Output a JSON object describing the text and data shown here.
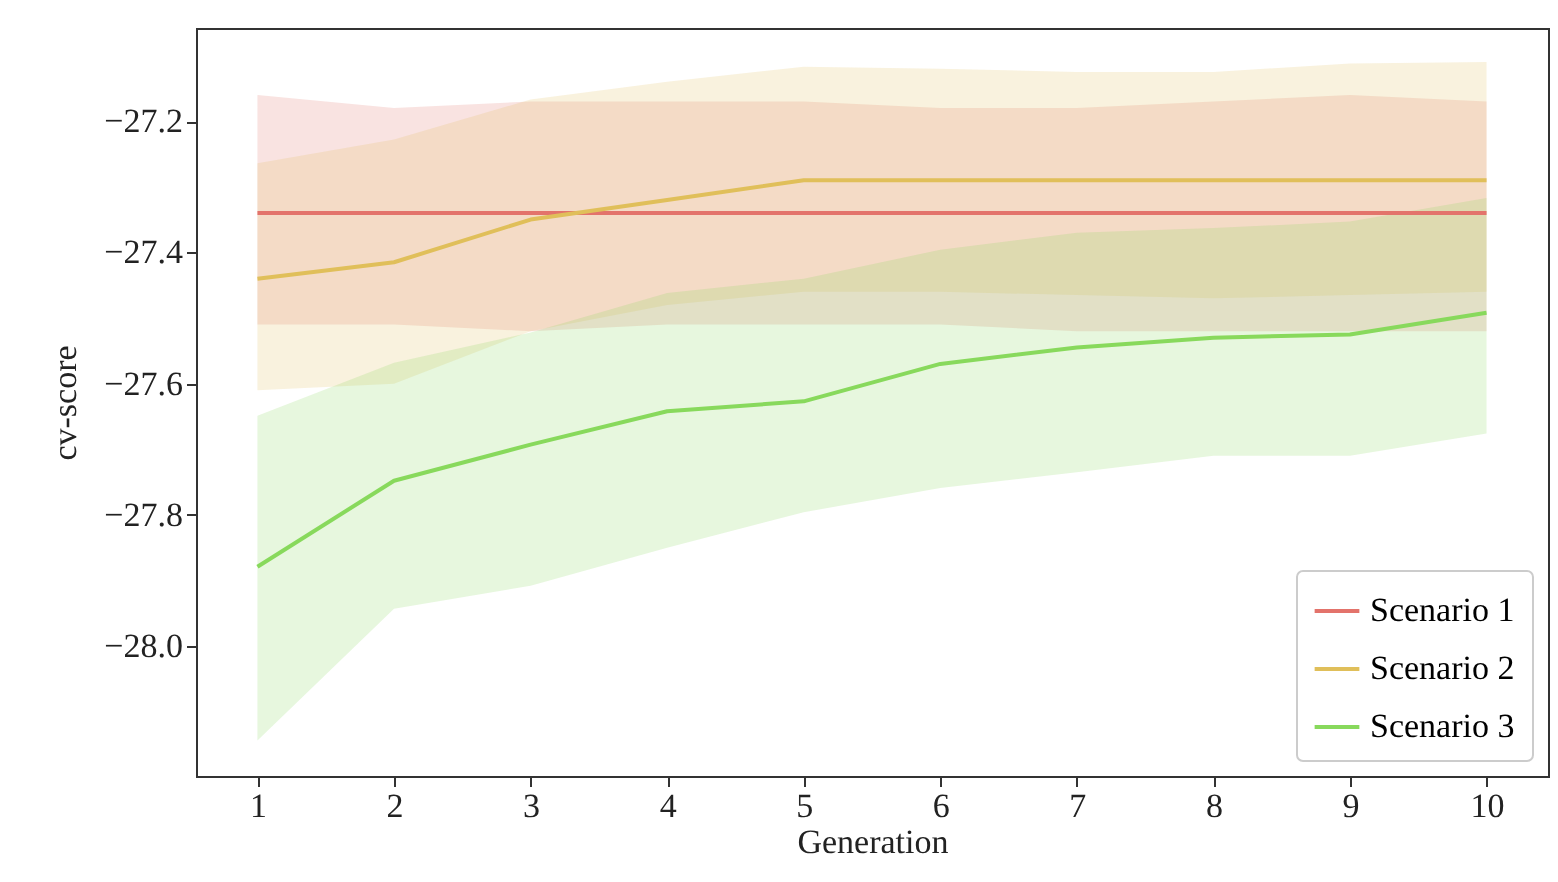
{
  "chart_data": {
    "type": "line",
    "xlabel": "Generation",
    "ylabel": "cv-score",
    "x": [
      1,
      2,
      3,
      4,
      5,
      6,
      7,
      8,
      9,
      10
    ],
    "xlim": [
      0.55,
      10.45
    ],
    "xticks": [
      1,
      2,
      3,
      4,
      5,
      6,
      7,
      8,
      9,
      10
    ],
    "ylim": [
      -28.198,
      -27.058
    ],
    "yticks": [
      {
        "value": -28.0,
        "label": "−28.0"
      },
      {
        "value": -27.8,
        "label": "−27.8"
      },
      {
        "value": -27.6,
        "label": "−27.6"
      },
      {
        "value": -27.4,
        "label": "−27.4"
      },
      {
        "value": -27.2,
        "label": "−27.2"
      }
    ],
    "grid": false,
    "legend": "bottom right",
    "marker": "none",
    "line_style": "solid",
    "series": [
      {
        "name": "Scenario 1",
        "color": "#e3736b",
        "values": [
          -27.34,
          -27.34,
          -27.34,
          -27.34,
          -27.34,
          -27.34,
          -27.34,
          -27.34,
          -27.34,
          -27.34
        ],
        "lower": [
          -27.51,
          -27.51,
          -27.52,
          -27.51,
          -27.51,
          -27.51,
          -27.52,
          -27.52,
          -27.52,
          -27.52
        ],
        "upper": [
          -27.16,
          -27.18,
          -27.17,
          -27.17,
          -27.17,
          -27.18,
          -27.18,
          -27.17,
          -27.16,
          -27.17
        ]
      },
      {
        "name": "Scenario 2",
        "color": "#e0bf5a",
        "values": [
          -27.44,
          -27.415,
          -27.35,
          -27.32,
          -27.29,
          -27.29,
          -27.29,
          -27.29,
          -27.29,
          -27.29
        ],
        "lower": [
          -27.61,
          -27.6,
          -27.52,
          -27.48,
          -27.46,
          -27.46,
          -27.465,
          -27.47,
          -27.465,
          -27.46
        ],
        "upper": [
          -27.264,
          -27.228,
          -27.167,
          -27.14,
          -27.117,
          -27.12,
          -27.125,
          -27.125,
          -27.112,
          -27.11
        ]
      },
      {
        "name": "Scenario 3",
        "color": "#88d95c",
        "values": [
          -27.879,
          -27.748,
          -27.693,
          -27.642,
          -27.627,
          -27.57,
          -27.545,
          -27.53,
          -27.525,
          -27.492
        ],
        "lower": [
          -28.144,
          -27.943,
          -27.908,
          -27.85,
          -27.796,
          -27.759,
          -27.735,
          -27.71,
          -27.71,
          -27.676
        ],
        "upper": [
          -27.649,
          -27.568,
          -27.522,
          -27.462,
          -27.44,
          -27.396,
          -27.37,
          -27.363,
          -27.353,
          -27.317
        ]
      }
    ]
  }
}
